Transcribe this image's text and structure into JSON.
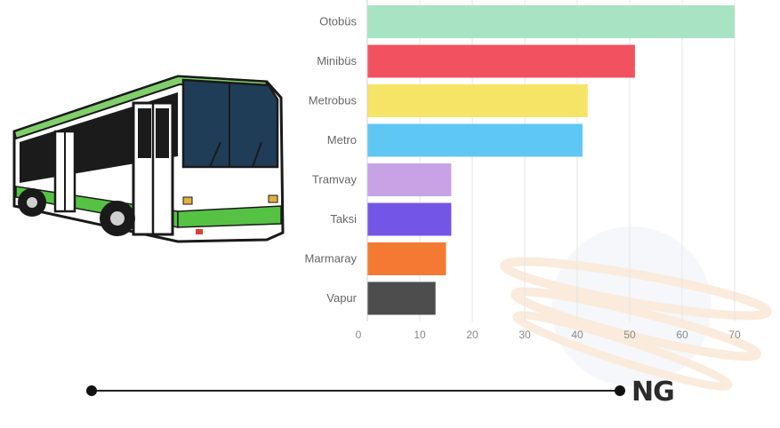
{
  "chart_data": {
    "type": "bar",
    "orientation": "horizontal",
    "categories": [
      "Otobüs",
      "Minibüs",
      "Metrobus",
      "Metro",
      "Tramvay",
      "Taksi",
      "Marmaray",
      "Vapur"
    ],
    "values": [
      70,
      51,
      42,
      41,
      16,
      16,
      15,
      13
    ],
    "colors": [
      "#a8e4c3",
      "#f2525f",
      "#f6e467",
      "#5fc7f3",
      "#c7a3e6",
      "#7356e6",
      "#f47a33",
      "#4d4d4d"
    ],
    "xticks": [
      0,
      10,
      20,
      30,
      40,
      50,
      60,
      70
    ],
    "xlim": [
      0,
      72
    ],
    "grid": true,
    "title": "",
    "xlabel": "",
    "ylabel": ""
  },
  "logo": {
    "text": "NG"
  },
  "colors": {
    "timeline": "#222222",
    "gridline": "#e6e6e6",
    "axis": "#cfcfcf"
  },
  "illustration": {
    "icon": "bus-icon"
  }
}
